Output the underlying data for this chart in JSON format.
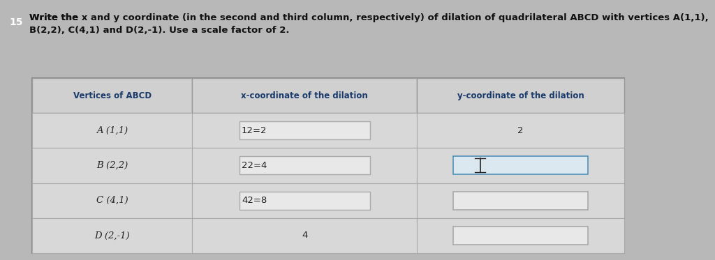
{
  "title_num": "15",
  "title_text": "Write the x and y coordinate (in the second and third column, respectively) of dilation of quadrilateral ABCD with vertices A(1,1),\nB(2,2), C(4,1) and D(2,-1). Use a scale factor of 2.",
  "col_headers": [
    "Vertices of ABCD",
    "x-coordinate of the dilation",
    "y-coordinate of the dilation"
  ],
  "rows": [
    {
      "vertex": "A (1,1)",
      "x_expr": "12=2",
      "x_has_box": true,
      "y_val": "2",
      "y_has_box": false,
      "y_cursor": false
    },
    {
      "vertex": "B (2,2)",
      "x_expr": "22=4",
      "x_has_box": true,
      "y_val": "",
      "y_has_box": true,
      "y_cursor": true
    },
    {
      "vertex": "C (4,1)",
      "x_expr": "42=8",
      "x_has_box": true,
      "y_val": "",
      "y_has_box": true,
      "y_cursor": false
    },
    {
      "vertex": "D (2,-1)",
      "x_expr": "4",
      "x_has_box": false,
      "y_val": "",
      "y_has_box": true,
      "y_cursor": false
    }
  ],
  "fig_bg": "#b8b8b8",
  "table_bg": "#d8d8d8",
  "header_bg": "#d0d0d0",
  "row_bg": "#d8d8d8",
  "input_box_color": "#e8e8e8",
  "active_box_color": "#dce8f0",
  "border_color": "#999999",
  "text_color": "#222222",
  "title_color": "#111111"
}
